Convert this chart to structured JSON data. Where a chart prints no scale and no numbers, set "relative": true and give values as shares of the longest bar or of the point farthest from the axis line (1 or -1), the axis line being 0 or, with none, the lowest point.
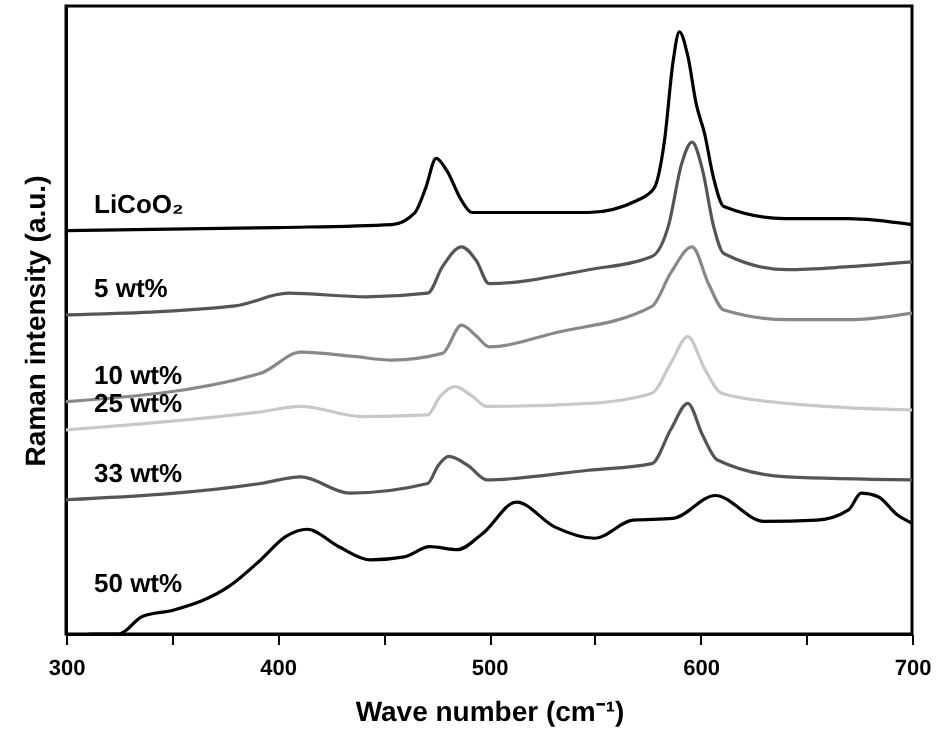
{
  "chart_data": {
    "type": "line",
    "relative": true,
    "xlabel": "Wave number (cm⁻¹)",
    "ylabel": "Raman intensity (a.u.)",
    "xlim": [
      300,
      700
    ],
    "xticks": [
      300,
      {
        "value": 350,
        "label": null
      },
      400,
      {
        "value": 450,
        "label": null
      },
      500,
      {
        "value": 550,
        "label": null
      },
      600,
      {
        "value": 650,
        "label": null
      },
      700
    ],
    "tick_labels": "x",
    "line_style": "solid",
    "marker": "none",
    "series": [
      {
        "name": "LiCoO₂",
        "color": "#000000",
        "x": [
          300,
          400,
          454,
          465,
          470,
          475,
          480,
          487,
          492,
          547,
          570,
          578,
          583,
          587,
          590,
          594,
          598,
          602,
          606,
          611,
          640,
          670,
          700
        ],
        "values": [
          0.67,
          0.675,
          0.68,
          0.7,
          0.74,
          0.79,
          0.77,
          0.72,
          0.7,
          0.7,
          0.72,
          0.74,
          0.82,
          0.95,
          1.0,
          0.96,
          0.88,
          0.83,
          0.76,
          0.71,
          0.69,
          0.69,
          0.68
        ]
      },
      {
        "name": "5 wt%",
        "color": "#555555",
        "x": [
          300,
          380,
          405,
          442,
          471,
          478,
          487,
          494,
          500,
          547,
          577,
          585,
          591,
          596,
          601,
          606,
          611,
          641,
          670,
          700
        ],
        "values": [
          0.53,
          0.545,
          0.566,
          0.56,
          0.566,
          0.61,
          0.643,
          0.62,
          0.582,
          0.605,
          0.627,
          0.68,
          0.78,
          0.817,
          0.77,
          0.68,
          0.632,
          0.605,
          0.61,
          0.618
        ]
      },
      {
        "name": "10 wt%",
        "color": "#888888",
        "x": [
          300,
          392,
          411,
          436,
          454,
          478,
          487,
          494,
          500,
          531,
          577,
          586,
          596,
          604,
          611,
          641,
          670,
          700
        ],
        "values": [
          0.386,
          0.433,
          0.468,
          0.461,
          0.455,
          0.466,
          0.513,
          0.495,
          0.477,
          0.5,
          0.544,
          0.6,
          0.643,
          0.58,
          0.538,
          0.522,
          0.522,
          0.533
        ]
      },
      {
        "name": "25 wt%",
        "color": "#c8c8c8",
        "x": [
          300,
          392,
          411,
          440,
          471,
          477,
          484,
          492,
          499,
          547,
          577,
          586,
          594,
          602,
          610,
          641,
          700
        ],
        "values": [
          0.339,
          0.369,
          0.378,
          0.361,
          0.364,
          0.395,
          0.411,
          0.395,
          0.378,
          0.383,
          0.4,
          0.45,
          0.494,
          0.44,
          0.4,
          0.383,
          0.372
        ]
      },
      {
        "name": "33 wt%",
        "color": "#555555",
        "x": [
          300,
          392,
          411,
          434,
          471,
          476,
          481,
          490,
          499,
          547,
          577,
          586,
          594,
          601,
          608,
          641,
          700
        ],
        "values": [
          0.223,
          0.25,
          0.261,
          0.234,
          0.25,
          0.28,
          0.295,
          0.28,
          0.256,
          0.272,
          0.283,
          0.34,
          0.383,
          0.33,
          0.289,
          0.261,
          0.256
        ]
      },
      {
        "name": "50 wt%",
        "color": "#000000",
        "x": [
          311,
          325,
          336,
          351,
          377,
          392,
          404,
          414,
          429,
          444,
          460,
          472,
          485,
          497,
          513,
          531,
          550,
          568,
          587,
          607,
          630,
          655,
          670,
          676,
          684,
          693,
          700
        ],
        "values": [
          0.0,
          0.0,
          0.029,
          0.04,
          0.079,
          0.123,
          0.162,
          0.174,
          0.145,
          0.123,
          0.128,
          0.145,
          0.14,
          0.167,
          0.219,
          0.178,
          0.159,
          0.189,
          0.192,
          0.23,
          0.187,
          0.189,
          0.206,
          0.234,
          0.228,
          0.198,
          0.184
        ]
      }
    ]
  }
}
